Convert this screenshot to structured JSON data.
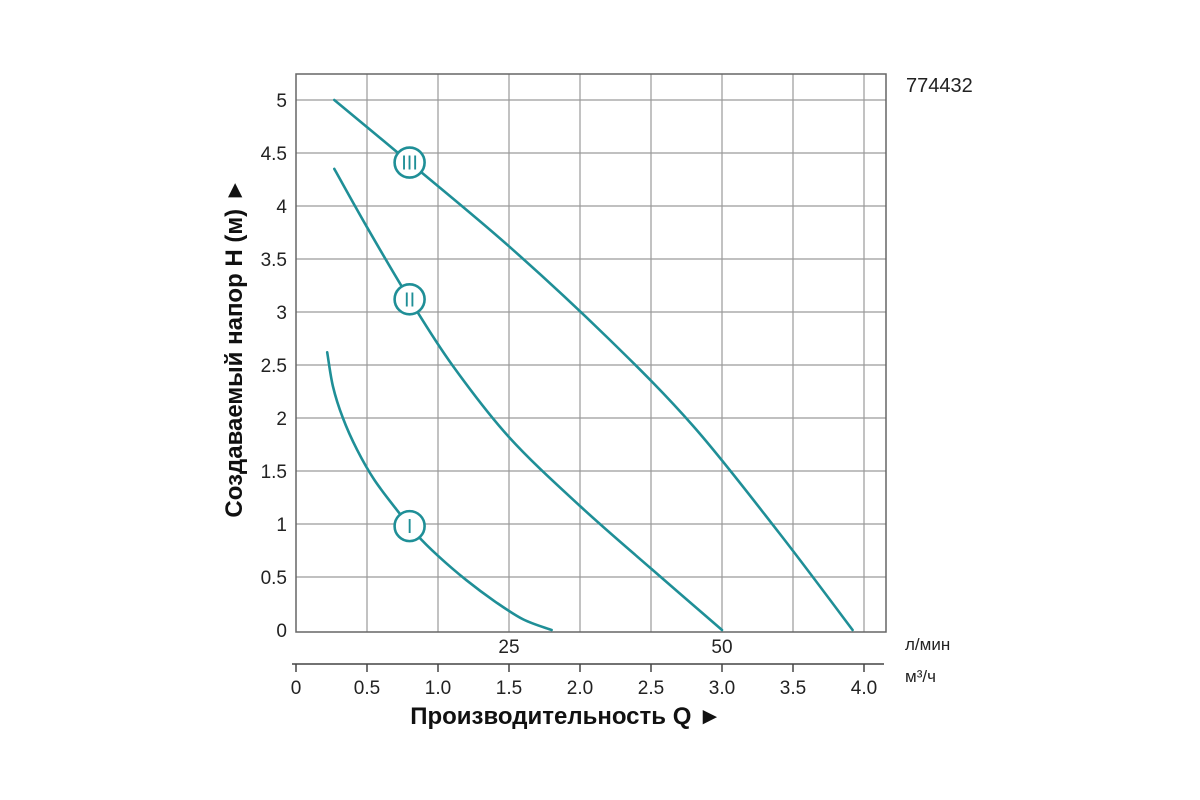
{
  "product_code": "774432",
  "chart_data": {
    "type": "line",
    "title": "",
    "xlabel": "Производительность Q ►",
    "ylabel": "Создаваемый напор H (м) ►",
    "x_unit": "м³/ч",
    "x2_unit": "л/мин",
    "xlim": [
      0,
      4.2
    ],
    "ylim": [
      0,
      5.2
    ],
    "x_ticks": [
      "0",
      "0.5",
      "1.0",
      "1.5",
      "2.0",
      "2.5",
      "3.0",
      "3.5",
      "4.0"
    ],
    "x_tick_values": [
      0,
      0.5,
      1.0,
      1.5,
      2.0,
      2.5,
      3.0,
      3.5,
      4.0
    ],
    "x2_ticks": [
      "25",
      "50"
    ],
    "x2_tick_values": [
      1.5,
      3.0
    ],
    "y_ticks": [
      "0",
      "0.5",
      "1",
      "1.5",
      "2",
      "2.5",
      "3",
      "3.5",
      "4",
      "4.5",
      "5"
    ],
    "y_tick_values": [
      0,
      0.5,
      1,
      1.5,
      2,
      2.5,
      3,
      3.5,
      4,
      4.5,
      5
    ],
    "grid": true,
    "line_color": "#1f8f97",
    "series": [
      {
        "name": "I",
        "label_at": [
          0.8,
          0.98
        ],
        "x": [
          0.22,
          0.26,
          0.33,
          0.43,
          0.55,
          0.7,
          0.85,
          1.0,
          1.2,
          1.4,
          1.6,
          1.8
        ],
        "y": [
          2.62,
          2.3,
          2.0,
          1.7,
          1.42,
          1.15,
          0.9,
          0.7,
          0.47,
          0.27,
          0.1,
          0.0
        ]
      },
      {
        "name": "II",
        "label_at": [
          0.8,
          3.12
        ],
        "x": [
          0.27,
          0.5,
          0.8,
          1.1,
          1.5,
          2.0,
          2.5,
          3.0
        ],
        "y": [
          4.35,
          3.8,
          3.12,
          2.5,
          1.82,
          1.17,
          0.58,
          0.0
        ]
      },
      {
        "name": "III",
        "label_at": [
          0.8,
          4.41
        ],
        "x": [
          0.27,
          0.8,
          1.5,
          2.2,
          2.8,
          3.4,
          3.92
        ],
        "y": [
          5.0,
          4.41,
          3.62,
          2.75,
          1.92,
          0.92,
          0.0
        ]
      }
    ]
  }
}
